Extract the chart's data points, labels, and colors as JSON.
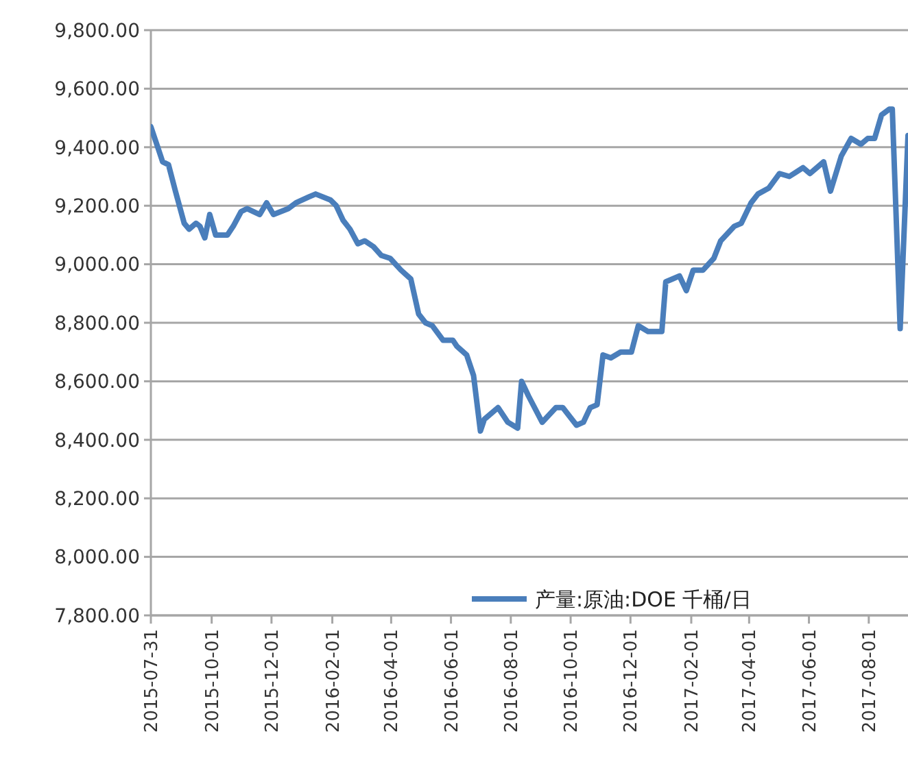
{
  "chart_data": {
    "type": "line",
    "legend": "bottom",
    "grid": "y",
    "line_style": "solid",
    "marker": "none",
    "xlim": [
      "2015-07-31",
      "2017-09-10"
    ],
    "xticks": [
      {
        "value": "2015-07-31",
        "label": "2015-07-31"
      },
      {
        "value": "2015-10-01",
        "label": "2015-10-01"
      },
      {
        "value": "2015-12-01",
        "label": "2015-12-01"
      },
      {
        "value": "2016-02-01",
        "label": "2016-02-01"
      },
      {
        "value": "2016-04-01",
        "label": "2016-04-01"
      },
      {
        "value": "2016-06-01",
        "label": "2016-06-01"
      },
      {
        "value": "2016-08-01",
        "label": "2016-08-01"
      },
      {
        "value": "2016-10-01",
        "label": "2016-10-01"
      },
      {
        "value": "2016-12-01",
        "label": "2016-12-01"
      },
      {
        "value": "2017-02-01",
        "label": "2017-02-01"
      },
      {
        "value": "2017-04-01",
        "label": "2017-04-01"
      },
      {
        "value": "2017-06-01",
        "label": "2017-06-01"
      },
      {
        "value": "2017-08-01",
        "label": "2017-08-01"
      }
    ],
    "ylim": [
      7800,
      9800
    ],
    "yticks": [
      {
        "value": 7800,
        "label": "7,800.00"
      },
      {
        "value": 8000,
        "label": "8,000.00"
      },
      {
        "value": 8200,
        "label": "8,200.00"
      },
      {
        "value": 8400,
        "label": "8,400.00"
      },
      {
        "value": 8600,
        "label": "8,600.00"
      },
      {
        "value": 8800,
        "label": "8,800.00"
      },
      {
        "value": 9000,
        "label": "9,000.00"
      },
      {
        "value": 9200,
        "label": "9,200.00"
      },
      {
        "value": 9400,
        "label": "9,400.00"
      },
      {
        "value": 9600,
        "label": "9,600.00"
      },
      {
        "value": 9800,
        "label": "9,800.00"
      }
    ],
    "series": [
      {
        "name": "产量:原油:DOE 千桶/日",
        "color": "#4a7ebb",
        "x": [
          "2015-07-31",
          "2015-08-07",
          "2015-08-12",
          "2015-08-18",
          "2015-08-25",
          "2015-09-03",
          "2015-09-08",
          "2015-09-15",
          "2015-09-19",
          "2015-09-24",
          "2015-09-29",
          "2015-10-05",
          "2015-10-17",
          "2015-10-23",
          "2015-10-31",
          "2015-11-06",
          "2015-11-19",
          "2015-11-26",
          "2015-12-03",
          "2015-12-18",
          "2015-12-26",
          "2016-01-08",
          "2016-01-15",
          "2016-01-30",
          "2016-02-05",
          "2016-02-12",
          "2016-02-19",
          "2016-02-27",
          "2016-03-05",
          "2016-03-14",
          "2016-03-22",
          "2016-03-31",
          "2016-04-11",
          "2016-04-21",
          "2016-04-29",
          "2016-05-06",
          "2016-05-13",
          "2016-05-24",
          "2016-06-03",
          "2016-06-07",
          "2016-06-17",
          "2016-06-24",
          "2016-07-01",
          "2016-07-05",
          "2016-07-19",
          "2016-07-29",
          "2016-08-08",
          "2016-08-12",
          "2016-08-19",
          "2016-09-02",
          "2016-09-16",
          "2016-09-23",
          "2016-10-07",
          "2016-10-14",
          "2016-10-21",
          "2016-10-28",
          "2016-11-03",
          "2016-11-11",
          "2016-11-21",
          "2016-12-02",
          "2016-12-09",
          "2016-12-19",
          "2017-01-02",
          "2017-01-06",
          "2017-01-13",
          "2017-01-20",
          "2017-01-27",
          "2017-02-03",
          "2017-02-13",
          "2017-02-24",
          "2017-03-03",
          "2017-03-17",
          "2017-03-24",
          "2017-04-03",
          "2017-04-10",
          "2017-04-21",
          "2017-05-02",
          "2017-05-12",
          "2017-05-26",
          "2017-06-02",
          "2017-06-16",
          "2017-06-23",
          "2017-07-04",
          "2017-07-14",
          "2017-07-24",
          "2017-07-31",
          "2017-08-07",
          "2017-08-14",
          "2017-08-22",
          "2017-08-25",
          "2017-09-02",
          "2017-09-10"
        ],
        "values": [
          9470,
          9400,
          9350,
          9340,
          9250,
          9140,
          9120,
          9140,
          9130,
          9090,
          9170,
          9100,
          9100,
          9130,
          9180,
          9190,
          9170,
          9210,
          9170,
          9190,
          9210,
          9230,
          9240,
          9220,
          9200,
          9150,
          9120,
          9070,
          9080,
          9060,
          9030,
          9020,
          8980,
          8950,
          8830,
          8800,
          8790,
          8740,
          8740,
          8720,
          8690,
          8620,
          8430,
          8470,
          8510,
          8460,
          8440,
          8600,
          8550,
          8460,
          8510,
          8510,
          8450,
          8460,
          8510,
          8520,
          8690,
          8680,
          8700,
          8700,
          8790,
          8770,
          8770,
          8940,
          8950,
          8960,
          8910,
          8980,
          8980,
          9020,
          9080,
          9130,
          9140,
          9210,
          9240,
          9260,
          9310,
          9300,
          9330,
          9310,
          9350,
          9250,
          9370,
          9430,
          9410,
          9430,
          9430,
          9510,
          9530,
          9530,
          8780,
          9440
        ]
      }
    ]
  }
}
